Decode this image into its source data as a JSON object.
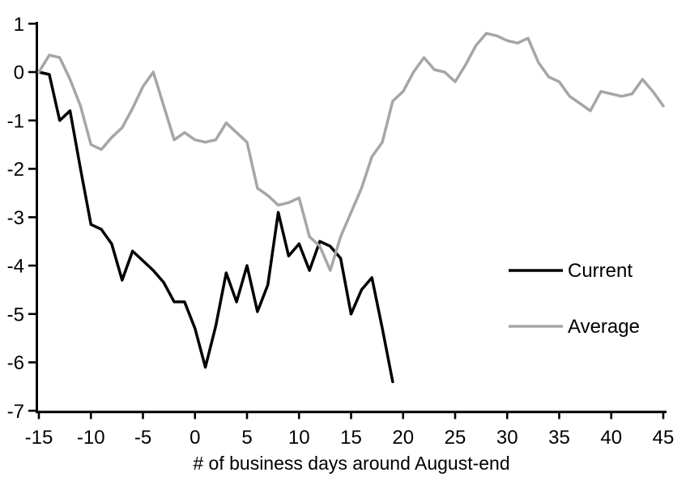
{
  "chart_data": {
    "type": "line",
    "title": "",
    "xlabel": "# of business days around August-end",
    "ylabel": "",
    "xlim": [
      -15,
      45
    ],
    "ylim": [
      -7,
      1
    ],
    "x_ticks": [
      -15,
      -10,
      -5,
      0,
      5,
      10,
      15,
      20,
      25,
      30,
      35,
      40,
      45
    ],
    "y_ticks": [
      1,
      0,
      -1,
      -2,
      -3,
      -4,
      -5,
      -6,
      -7
    ],
    "grid": false,
    "legend": {
      "position": "middle-right",
      "entries": [
        "Current",
        "Average"
      ]
    },
    "colors": {
      "current": "#000000",
      "average": "#a6a6a6"
    },
    "series": [
      {
        "name": "Current",
        "color": "#000000",
        "x": [
          -15,
          -14,
          -13,
          -12,
          -11,
          -10,
          -9,
          -8,
          -7,
          -6,
          -5,
          -4,
          -3,
          -2,
          -1,
          0,
          1,
          2,
          3,
          4,
          5,
          6,
          7,
          8,
          9,
          10,
          11,
          12,
          13,
          14,
          15,
          16,
          17,
          18,
          19
        ],
        "values": [
          0,
          -0.05,
          -1.0,
          -0.8,
          -2.0,
          -3.15,
          -3.25,
          -3.55,
          -4.3,
          -3.7,
          -3.9,
          -4.1,
          -4.35,
          -4.75,
          -4.75,
          -5.3,
          -6.1,
          -5.25,
          -4.15,
          -4.75,
          -4.0,
          -4.95,
          -4.4,
          -2.9,
          -3.8,
          -3.55,
          -4.1,
          -3.5,
          -3.6,
          -3.85,
          -5.0,
          -4.5,
          -4.25,
          -5.3,
          -6.4
        ]
      },
      {
        "name": "Average",
        "color": "#a6a6a6",
        "x": [
          -15,
          -14,
          -13,
          -12,
          -11,
          -10,
          -9,
          -8,
          -7,
          -6,
          -5,
          -4,
          -3,
          -2,
          -1,
          0,
          1,
          2,
          3,
          4,
          5,
          6,
          7,
          8,
          9,
          10,
          11,
          12,
          13,
          14,
          15,
          16,
          17,
          18,
          19,
          20,
          21,
          22,
          23,
          24,
          25,
          26,
          27,
          28,
          29,
          30,
          31,
          32,
          33,
          34,
          35,
          36,
          37,
          38,
          39,
          40,
          41,
          42,
          43,
          44,
          45
        ],
        "values": [
          0,
          0.35,
          0.3,
          -0.15,
          -0.7,
          -1.5,
          -1.6,
          -1.35,
          -1.15,
          -0.75,
          -0.3,
          0,
          -0.7,
          -1.4,
          -1.25,
          -1.4,
          -1.45,
          -1.4,
          -1.05,
          -1.25,
          -1.45,
          -2.4,
          -2.55,
          -2.75,
          -2.7,
          -2.6,
          -3.4,
          -3.6,
          -4.1,
          -3.4,
          -2.9,
          -2.4,
          -1.75,
          -1.45,
          -0.6,
          -0.4,
          0,
          0.3,
          0.05,
          0,
          -0.2,
          0.15,
          0.55,
          0.8,
          0.75,
          0.65,
          0.6,
          0.7,
          0.2,
          -0.1,
          -0.2,
          -0.5,
          -0.65,
          -0.8,
          -0.4,
          -0.45,
          -0.5,
          -0.45,
          -0.15,
          -0.4,
          -0.7
        ]
      }
    ]
  }
}
